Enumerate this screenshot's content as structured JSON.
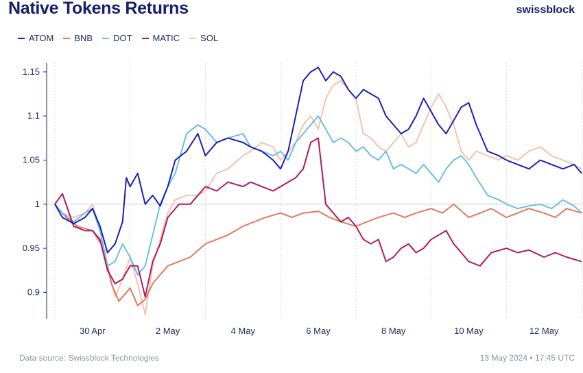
{
  "header": {
    "title": "Native Tokens Returns",
    "brand": "swissblock"
  },
  "footer": {
    "source": "Data source: Swissblock Technologies",
    "timestamp": "13 May 2024 • 17:45 UTC"
  },
  "chart_data": {
    "type": "line",
    "xlabel": "",
    "ylabel": "",
    "x_range_days": [
      0,
      14
    ],
    "ylim": [
      0.87,
      1.16
    ],
    "baseline": 1,
    "y_ticks": [
      0.9,
      0.95,
      1,
      1.05,
      1.1,
      1.15
    ],
    "y_tick_labels": [
      "0.9",
      "0.95",
      "1",
      "1.05",
      "1.1",
      "1.15"
    ],
    "x_ticks": [
      1,
      3,
      5,
      7,
      9,
      11,
      13
    ],
    "x_tick_labels": [
      "30 Apr",
      "2 May",
      "4 May",
      "6 May",
      "8 May",
      "10 May",
      "12 May"
    ],
    "day_dividers": [
      0,
      2,
      4,
      6,
      8,
      10,
      12,
      14
    ],
    "legend_position": "top-left",
    "series": [
      {
        "name": "ATOM",
        "color": "#1a1fb8",
        "x": [
          0,
          0.2,
          0.5,
          0.8,
          1.0,
          1.2,
          1.4,
          1.6,
          1.8,
          1.9,
          2.0,
          2.2,
          2.4,
          2.6,
          2.8,
          3.0,
          3.2,
          3.5,
          3.8,
          4.0,
          4.3,
          4.6,
          5.0,
          5.2,
          5.5,
          5.8,
          6.0,
          6.2,
          6.4,
          6.6,
          6.8,
          7.0,
          7.2,
          7.4,
          7.6,
          7.8,
          8.0,
          8.2,
          8.4,
          8.6,
          8.8,
          9.0,
          9.2,
          9.4,
          9.6,
          9.8,
          10.0,
          10.2,
          10.4,
          10.6,
          10.8,
          11.0,
          11.2,
          11.5,
          11.8,
          12.0,
          12.3,
          12.6,
          12.9,
          13.2,
          13.5,
          13.8,
          14.0
        ],
        "y": [
          1.0,
          0.985,
          0.978,
          0.985,
          0.995,
          0.975,
          0.945,
          0.955,
          0.98,
          1.03,
          1.02,
          1.035,
          1.0,
          1.01,
          0.998,
          1.02,
          1.05,
          1.06,
          1.08,
          1.055,
          1.07,
          1.075,
          1.07,
          1.065,
          1.06,
          1.05,
          1.04,
          1.06,
          1.1,
          1.14,
          1.15,
          1.155,
          1.14,
          1.15,
          1.145,
          1.13,
          1.12,
          1.13,
          1.125,
          1.12,
          1.1,
          1.09,
          1.08,
          1.085,
          1.1,
          1.12,
          1.105,
          1.09,
          1.08,
          1.095,
          1.11,
          1.115,
          1.09,
          1.06,
          1.055,
          1.05,
          1.045,
          1.04,
          1.05,
          1.045,
          1.04,
          1.045,
          1.035
        ]
      },
      {
        "name": "BNB",
        "color": "#e07a5f",
        "x": [
          0,
          0.3,
          0.6,
          1.0,
          1.3,
          1.5,
          1.7,
          2.0,
          2.2,
          2.4,
          2.6,
          2.8,
          3.0,
          3.3,
          3.6,
          4.0,
          4.3,
          4.6,
          5.0,
          5.3,
          5.6,
          6.0,
          6.3,
          6.6,
          7.0,
          7.3,
          7.6,
          8.0,
          8.3,
          8.6,
          9.0,
          9.3,
          9.6,
          10.0,
          10.3,
          10.6,
          11.0,
          11.3,
          11.6,
          12.0,
          12.3,
          12.6,
          13.0,
          13.3,
          13.6,
          14.0
        ],
        "y": [
          1.0,
          0.985,
          0.975,
          0.97,
          0.95,
          0.91,
          0.89,
          0.905,
          0.885,
          0.892,
          0.91,
          0.92,
          0.93,
          0.935,
          0.94,
          0.955,
          0.96,
          0.965,
          0.975,
          0.98,
          0.985,
          0.99,
          0.985,
          0.99,
          0.992,
          0.985,
          0.98,
          0.975,
          0.98,
          0.985,
          0.99,
          0.985,
          0.99,
          0.995,
          0.99,
          1.0,
          0.985,
          0.99,
          0.995,
          0.985,
          0.99,
          0.995,
          0.99,
          0.985,
          0.995,
          0.99
        ]
      },
      {
        "name": "DOT",
        "color": "#6cbde6",
        "x": [
          0,
          0.2,
          0.5,
          0.8,
          1.0,
          1.2,
          1.4,
          1.6,
          1.8,
          2.0,
          2.2,
          2.4,
          2.6,
          2.8,
          3.0,
          3.2,
          3.5,
          3.8,
          4.0,
          4.3,
          4.6,
          5.0,
          5.2,
          5.5,
          5.8,
          6.0,
          6.2,
          6.4,
          6.6,
          6.8,
          7.0,
          7.2,
          7.4,
          7.6,
          7.8,
          8.0,
          8.2,
          8.4,
          8.6,
          8.8,
          9.0,
          9.2,
          9.4,
          9.6,
          9.8,
          10.0,
          10.2,
          10.4,
          10.6,
          10.8,
          11.0,
          11.2,
          11.5,
          11.8,
          12.0,
          12.3,
          12.6,
          12.9,
          13.2,
          13.5,
          13.8,
          14.0
        ],
        "y": [
          1.0,
          0.99,
          0.98,
          0.99,
          0.995,
          0.97,
          0.93,
          0.935,
          0.955,
          0.94,
          0.92,
          0.93,
          0.965,
          1.0,
          1.02,
          1.035,
          1.08,
          1.09,
          1.085,
          1.07,
          1.075,
          1.08,
          1.065,
          1.06,
          1.055,
          1.06,
          1.05,
          1.07,
          1.08,
          1.09,
          1.1,
          1.085,
          1.07,
          1.075,
          1.07,
          1.06,
          1.065,
          1.055,
          1.05,
          1.06,
          1.04,
          1.045,
          1.04,
          1.035,
          1.045,
          1.035,
          1.025,
          1.04,
          1.05,
          1.055,
          1.045,
          1.03,
          1.01,
          1.005,
          1.0,
          0.995,
          0.998,
          1.0,
          0.995,
          1.005,
          0.998,
          0.99
        ]
      },
      {
        "name": "MATIC",
        "color": "#b0185e",
        "x": [
          0,
          0.2,
          0.5,
          0.8,
          1.0,
          1.2,
          1.4,
          1.6,
          1.8,
          2.0,
          2.2,
          2.4,
          2.6,
          2.8,
          3.0,
          3.3,
          3.6,
          4.0,
          4.3,
          4.6,
          5.0,
          5.2,
          5.5,
          5.8,
          6.0,
          6.2,
          6.4,
          6.6,
          6.8,
          7.0,
          7.2,
          7.4,
          7.6,
          7.8,
          8.0,
          8.2,
          8.4,
          8.6,
          8.8,
          9.0,
          9.2,
          9.4,
          9.6,
          9.8,
          10.0,
          10.2,
          10.4,
          10.6,
          10.8,
          11.0,
          11.3,
          11.6,
          12.0,
          12.3,
          12.6,
          13.0,
          13.3,
          13.6,
          14.0
        ],
        "y": [
          1.0,
          1.012,
          0.975,
          0.97,
          0.97,
          0.96,
          0.925,
          0.91,
          0.915,
          0.93,
          0.93,
          0.895,
          0.935,
          0.955,
          0.985,
          1.0,
          1.0,
          1.02,
          1.015,
          1.025,
          1.02,
          1.025,
          1.02,
          1.015,
          1.02,
          1.025,
          1.03,
          1.04,
          1.07,
          1.075,
          1.0,
          0.99,
          0.98,
          0.985,
          0.975,
          0.96,
          0.955,
          0.96,
          0.935,
          0.94,
          0.95,
          0.955,
          0.945,
          0.95,
          0.96,
          0.965,
          0.97,
          0.955,
          0.945,
          0.935,
          0.93,
          0.945,
          0.95,
          0.945,
          0.948,
          0.94,
          0.945,
          0.94,
          0.935
        ]
      },
      {
        "name": "SOL",
        "color": "#f4c2ae",
        "x": [
          0,
          0.2,
          0.5,
          0.8,
          1.0,
          1.2,
          1.4,
          1.6,
          1.8,
          2.0,
          2.2,
          2.4,
          2.6,
          2.8,
          3.0,
          3.2,
          3.5,
          3.8,
          4.0,
          4.3,
          4.6,
          5.0,
          5.2,
          5.5,
          5.8,
          6.0,
          6.2,
          6.4,
          6.6,
          6.8,
          7.0,
          7.2,
          7.4,
          7.6,
          7.8,
          8.0,
          8.2,
          8.4,
          8.6,
          8.8,
          9.0,
          9.2,
          9.4,
          9.6,
          9.8,
          10.0,
          10.2,
          10.4,
          10.6,
          10.8,
          11.0,
          11.2,
          11.5,
          11.8,
          12.0,
          12.3,
          12.6,
          12.9,
          13.2,
          13.5,
          13.8,
          14.0
        ],
        "y": [
          1.0,
          0.99,
          0.985,
          0.99,
          1.0,
          0.97,
          0.93,
          0.895,
          0.915,
          0.94,
          0.91,
          0.875,
          0.93,
          0.96,
          0.99,
          1.005,
          1.01,
          1.01,
          1.015,
          1.035,
          1.04,
          1.055,
          1.06,
          1.07,
          1.065,
          1.05,
          1.06,
          1.07,
          1.09,
          1.1,
          1.085,
          1.12,
          1.135,
          1.14,
          1.13,
          1.12,
          1.08,
          1.075,
          1.065,
          1.06,
          1.07,
          1.08,
          1.065,
          1.07,
          1.09,
          1.11,
          1.125,
          1.11,
          1.09,
          1.06,
          1.05,
          1.06,
          1.055,
          1.05,
          1.055,
          1.05,
          1.06,
          1.065,
          1.055,
          1.05,
          1.045,
          1.04
        ]
      }
    ]
  }
}
